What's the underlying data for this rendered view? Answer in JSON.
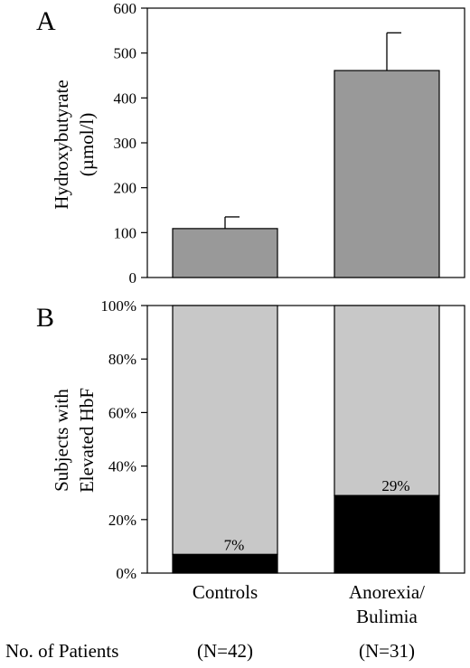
{
  "chart_data": [
    {
      "panel": "A",
      "type": "bar",
      "categories": [
        "Controls",
        "Anorexia/\nBulimia"
      ],
      "values": [
        109,
        461
      ],
      "errors": [
        26,
        84
      ],
      "ylabel_lines": [
        "Hydroxybutyrate",
        "(µmol/l)"
      ],
      "ylim": [
        0,
        600
      ],
      "yticks": [
        0,
        100,
        200,
        300,
        400,
        500,
        600
      ],
      "bar_color": "#999999",
      "grid": false
    },
    {
      "panel": "B",
      "type": "bar",
      "stacked": true,
      "categories": [
        "Controls",
        "Anorexia/\nBulimia"
      ],
      "series": [
        {
          "values": [
            7,
            29
          ],
          "color": "#000000"
        },
        {
          "values": [
            93,
            71
          ],
          "color": "#c8c8c8"
        }
      ],
      "data_labels": [
        "7%",
        "29%"
      ],
      "ylabel_lines": [
        "Subjects with",
        "Elevated HbF"
      ],
      "ylim": [
        0,
        100
      ],
      "yticks": [
        "0%",
        "20%",
        "40%",
        "60%",
        "80%",
        "100%"
      ],
      "grid": false
    }
  ],
  "x_categories": [
    "Controls",
    "Anorexia/",
    "Bulimia"
  ],
  "footer": {
    "label": "No. of Patients",
    "counts": [
      "(N=42)",
      "(N=31)"
    ]
  }
}
